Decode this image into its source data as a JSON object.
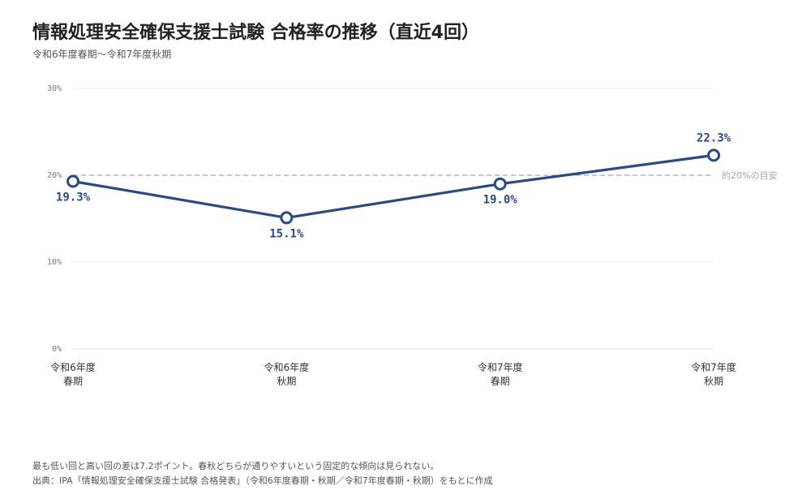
{
  "header": {
    "title": "情報処理安全確保支援士試験 合格率の推移（直近4回）",
    "subtitle": "令和6年度春期〜令和7年度秋期"
  },
  "footer": {
    "note": "最も低い回と高い回の差は7.2ポイント。春秋どちらが通りやすいという固定的な傾向は見られない。",
    "source": "出典：IPA「情報処理安全確保支援士試験 合格発表」（令和6年度春期・秋期／令和7年度春期・秋期）をもとに作成"
  },
  "chart_data": {
    "type": "line",
    "categories": [
      [
        "令和6年度",
        "春期"
      ],
      [
        "令和6年度",
        "秋期"
      ],
      [
        "令和7年度",
        "春期"
      ],
      [
        "令和7年度",
        "秋期"
      ]
    ],
    "series": [
      {
        "values": [
          19.3,
          15.1,
          19.0,
          22.3
        ],
        "labels": [
          "19.3%",
          "15.1%",
          "19.0%",
          "22.3%"
        ],
        "color": "#2b4a85"
      }
    ],
    "ylim": [
      0,
      30
    ],
    "yticks": [
      0,
      10,
      20,
      30
    ],
    "ytick_labels": [
      "0%",
      "10%",
      "20%",
      "30%"
    ],
    "grid": true,
    "reference_line": {
      "value": 20,
      "label": "約20%の目安",
      "color": "#9aa6c4"
    }
  }
}
